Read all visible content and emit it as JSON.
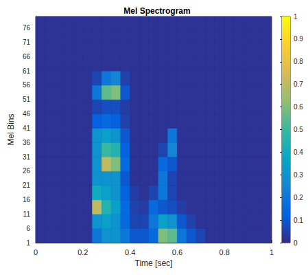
{
  "chart_data": {
    "type": "heatmap",
    "title": "Mel Spectrogram",
    "x_label": "Time [sec]",
    "y_label": "Mel Bins",
    "xlim": [
      0,
      1
    ],
    "xticks": [
      0,
      0.2,
      0.4,
      0.6,
      0.8,
      1
    ],
    "ylim": [
      1,
      80
    ],
    "yticks": [
      1,
      6,
      11,
      16,
      21,
      26,
      31,
      36,
      41,
      46,
      51,
      56,
      61,
      66,
      71,
      76
    ],
    "x_edges": [
      0,
      0.04,
      0.08,
      0.12,
      0.16,
      0.2,
      0.24,
      0.28,
      0.32,
      0.36,
      0.4,
      0.44,
      0.48,
      0.52,
      0.56,
      0.6,
      0.64,
      0.68,
      0.72,
      0.76,
      0.8,
      0.84,
      0.88,
      0.92,
      0.96,
      1
    ],
    "y_edges": [
      1,
      6,
      11,
      16,
      21,
      26,
      31,
      36,
      41,
      46,
      51,
      56,
      61,
      66,
      71,
      76,
      80
    ],
    "values": [
      [
        0.02,
        0.02,
        0.02,
        0.02,
        0.02,
        0.02,
        0.2,
        0.3,
        0.3,
        0.2,
        0.1,
        0.1,
        0.15,
        0.6,
        0.55,
        0.2,
        0.1,
        0.06,
        0.02,
        0.02,
        0.02,
        0.02,
        0.02,
        0.02,
        0.02
      ],
      [
        0.02,
        0.02,
        0.02,
        0.02,
        0.02,
        0.02,
        0.3,
        0.35,
        0.3,
        0.15,
        0.06,
        0.06,
        0.2,
        0.35,
        0.3,
        0.1,
        0.05,
        0.02,
        0.02,
        0.02,
        0.02,
        0.02,
        0.02,
        0.02,
        0.02
      ],
      [
        0.02,
        0.02,
        0.02,
        0.02,
        0.02,
        0.02,
        0.7,
        0.45,
        0.35,
        0.15,
        0.05,
        0.04,
        0.15,
        0.1,
        0.08,
        0.04,
        0.02,
        0.02,
        0.02,
        0.02,
        0.02,
        0.02,
        0.02,
        0.02,
        0.02
      ],
      [
        0.02,
        0.02,
        0.02,
        0.02,
        0.02,
        0.02,
        0.4,
        0.35,
        0.3,
        0.12,
        0.04,
        0.02,
        0.06,
        0.2,
        0.06,
        0.02,
        0.02,
        0.02,
        0.02,
        0.02,
        0.02,
        0.02,
        0.02,
        0.02,
        0.02
      ],
      [
        0.02,
        0.02,
        0.02,
        0.02,
        0.02,
        0.02,
        0.3,
        0.3,
        0.3,
        0.1,
        0.02,
        0.02,
        0.02,
        0.2,
        0.06,
        0.02,
        0.02,
        0.02,
        0.02,
        0.02,
        0.02,
        0.02,
        0.02,
        0.02,
        0.02
      ],
      [
        0.02,
        0.02,
        0.02,
        0.02,
        0.02,
        0.02,
        0.3,
        0.7,
        0.6,
        0.15,
        0.02,
        0.02,
        0.02,
        0.15,
        0.1,
        0.02,
        0.02,
        0.02,
        0.02,
        0.02,
        0.02,
        0.02,
        0.02,
        0.02,
        0.02
      ],
      [
        0.02,
        0.02,
        0.02,
        0.02,
        0.02,
        0.02,
        0.3,
        0.5,
        0.45,
        0.12,
        0.02,
        0.02,
        0.02,
        0.06,
        0.25,
        0.02,
        0.02,
        0.02,
        0.02,
        0.02,
        0.02,
        0.02,
        0.02,
        0.02,
        0.02
      ],
      [
        0.02,
        0.02,
        0.02,
        0.02,
        0.02,
        0.02,
        0.3,
        0.35,
        0.3,
        0.1,
        0.02,
        0.02,
        0.02,
        0.02,
        0.2,
        0.02,
        0.02,
        0.02,
        0.02,
        0.02,
        0.02,
        0.02,
        0.02,
        0.02,
        0.02
      ],
      [
        0.02,
        0.02,
        0.02,
        0.02,
        0.02,
        0.02,
        0.12,
        0.15,
        0.12,
        0.05,
        0.02,
        0.02,
        0.02,
        0.02,
        0.02,
        0.02,
        0.02,
        0.02,
        0.02,
        0.02,
        0.02,
        0.02,
        0.02,
        0.02,
        0.02
      ],
      [
        0.02,
        0.02,
        0.02,
        0.02,
        0.02,
        0.02,
        0.06,
        0.08,
        0.08,
        0.04,
        0.02,
        0.02,
        0.02,
        0.02,
        0.02,
        0.02,
        0.02,
        0.02,
        0.02,
        0.02,
        0.02,
        0.02,
        0.02,
        0.02,
        0.02
      ],
      [
        0.02,
        0.02,
        0.02,
        0.02,
        0.02,
        0.02,
        0.2,
        0.55,
        0.6,
        0.1,
        0.02,
        0.02,
        0.02,
        0.02,
        0.02,
        0.02,
        0.02,
        0.02,
        0.02,
        0.02,
        0.02,
        0.02,
        0.02,
        0.02,
        0.02
      ],
      [
        0.02,
        0.02,
        0.02,
        0.02,
        0.02,
        0.02,
        0.06,
        0.2,
        0.25,
        0.05,
        0.02,
        0.02,
        0.02,
        0.02,
        0.02,
        0.02,
        0.02,
        0.02,
        0.02,
        0.02,
        0.02,
        0.02,
        0.02,
        0.02,
        0.02
      ],
      [
        0.02,
        0.02,
        0.02,
        0.02,
        0.02,
        0.02,
        0.02,
        0.02,
        0.02,
        0.02,
        0.02,
        0.02,
        0.02,
        0.02,
        0.02,
        0.02,
        0.02,
        0.02,
        0.02,
        0.02,
        0.02,
        0.02,
        0.02,
        0.02,
        0.02
      ],
      [
        0.02,
        0.02,
        0.02,
        0.02,
        0.02,
        0.02,
        0.02,
        0.02,
        0.02,
        0.02,
        0.02,
        0.02,
        0.02,
        0.02,
        0.02,
        0.02,
        0.02,
        0.02,
        0.02,
        0.02,
        0.02,
        0.02,
        0.02,
        0.02,
        0.02
      ],
      [
        0.02,
        0.02,
        0.02,
        0.02,
        0.02,
        0.02,
        0.02,
        0.02,
        0.02,
        0.02,
        0.02,
        0.02,
        0.02,
        0.02,
        0.02,
        0.02,
        0.02,
        0.02,
        0.02,
        0.02,
        0.02,
        0.02,
        0.02,
        0.02,
        0.02
      ],
      [
        0.02,
        0.02,
        0.02,
        0.02,
        0.02,
        0.02,
        0.02,
        0.02,
        0.02,
        0.02,
        0.02,
        0.02,
        0.02,
        0.02,
        0.02,
        0.02,
        0.02,
        0.02,
        0.02,
        0.02,
        0.02,
        0.02,
        0.02,
        0.02,
        0.02
      ]
    ],
    "colorbar_lim": [
      0,
      1
    ],
    "colorbar_ticks": [
      0,
      0.1,
      0.2,
      0.3,
      0.4,
      0.5,
      0.6,
      0.7,
      0.8,
      0.9,
      1
    ]
  }
}
